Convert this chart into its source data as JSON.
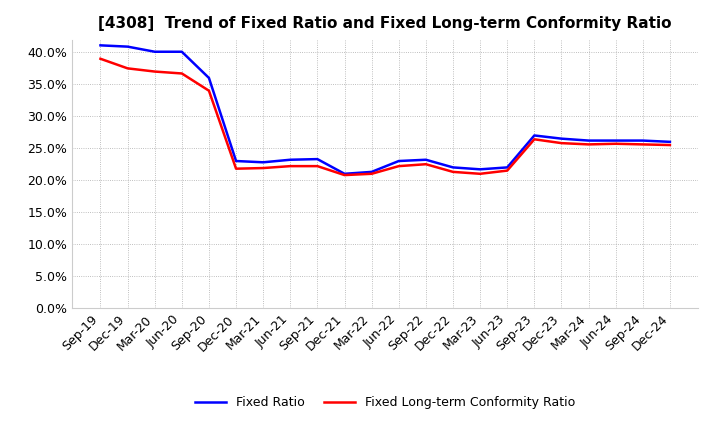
{
  "title": "[4308]  Trend of Fixed Ratio and Fixed Long-term Conformity Ratio",
  "x_labels": [
    "Sep-19",
    "Dec-19",
    "Mar-20",
    "Jun-20",
    "Sep-20",
    "Dec-20",
    "Mar-21",
    "Jun-21",
    "Sep-21",
    "Dec-21",
    "Mar-22",
    "Jun-22",
    "Sep-22",
    "Dec-22",
    "Mar-23",
    "Jun-23",
    "Sep-23",
    "Dec-23",
    "Mar-24",
    "Jun-24",
    "Sep-24",
    "Dec-24"
  ],
  "fixed_ratio": [
    0.411,
    0.409,
    0.401,
    0.401,
    0.36,
    0.23,
    0.228,
    0.232,
    0.233,
    0.21,
    0.213,
    0.23,
    0.232,
    0.22,
    0.217,
    0.22,
    0.27,
    0.265,
    0.262,
    0.262,
    0.262,
    0.26
  ],
  "fixed_longterm": [
    0.39,
    0.375,
    0.37,
    0.367,
    0.34,
    0.218,
    0.219,
    0.222,
    0.222,
    0.208,
    0.21,
    0.222,
    0.225,
    0.213,
    0.21,
    0.215,
    0.264,
    0.258,
    0.256,
    0.257,
    0.256,
    0.255
  ],
  "fixed_ratio_color": "#0000FF",
  "fixed_longterm_color": "#FF0000",
  "background_color": "#FFFFFF",
  "grid_color": "#AAAAAA",
  "ylim": [
    0.0,
    0.42
  ],
  "yticks": [
    0.0,
    0.05,
    0.1,
    0.15,
    0.2,
    0.25,
    0.3,
    0.35,
    0.4
  ],
  "line_width": 1.8,
  "tick_fontsize": 9,
  "title_fontsize": 11,
  "legend_fontsize": 9
}
